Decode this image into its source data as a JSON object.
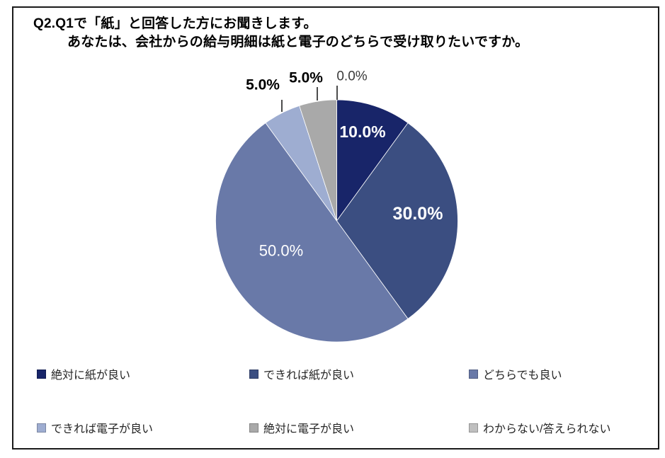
{
  "title": {
    "line1": "Q2.Q1で「紙」と回答した方にお聞きします。",
    "line2": "あなたは、会社からの給与明細は紙と電子のどちらで受け取りたいですか。"
  },
  "chart_data": {
    "type": "pie",
    "title": "Q2. あなたは、会社からの給与明細は紙と電子のどちらで受け取りたいですか。",
    "categories": [
      "絶対に紙が良い",
      "できれば紙が良い",
      "どちらでも良い",
      "できれば電子が良い",
      "絶対に電子が良い",
      "わからない/答えられない"
    ],
    "values": [
      10.0,
      30.0,
      50.0,
      5.0,
      5.0,
      0.0
    ],
    "data_labels": [
      "10.0%",
      "30.0%",
      "50.0%",
      "5.0%",
      "5.0%",
      "0.0%"
    ],
    "colors": [
      "#182569",
      "#3B4E81",
      "#6979A8",
      "#9EADD1",
      "#A9A9A9",
      "#BFBFBF"
    ],
    "unit": "%",
    "start_angle_deg": 0,
    "direction": "clockwise",
    "legend_position": "bottom",
    "grid": false
  },
  "legend": {
    "items": [
      {
        "label": "絶対に紙が良い",
        "color": "#182569"
      },
      {
        "label": "できれば紙が良い",
        "color": "#3B4E81"
      },
      {
        "label": "どちらでも良い",
        "color": "#6979A8"
      },
      {
        "label": "できれば電子が良い",
        "color": "#9EADD1"
      },
      {
        "label": "絶対に電子が良い",
        "color": "#A9A9A9"
      },
      {
        "label": "わからない/答えられない",
        "color": "#BFBFBF"
      }
    ]
  }
}
